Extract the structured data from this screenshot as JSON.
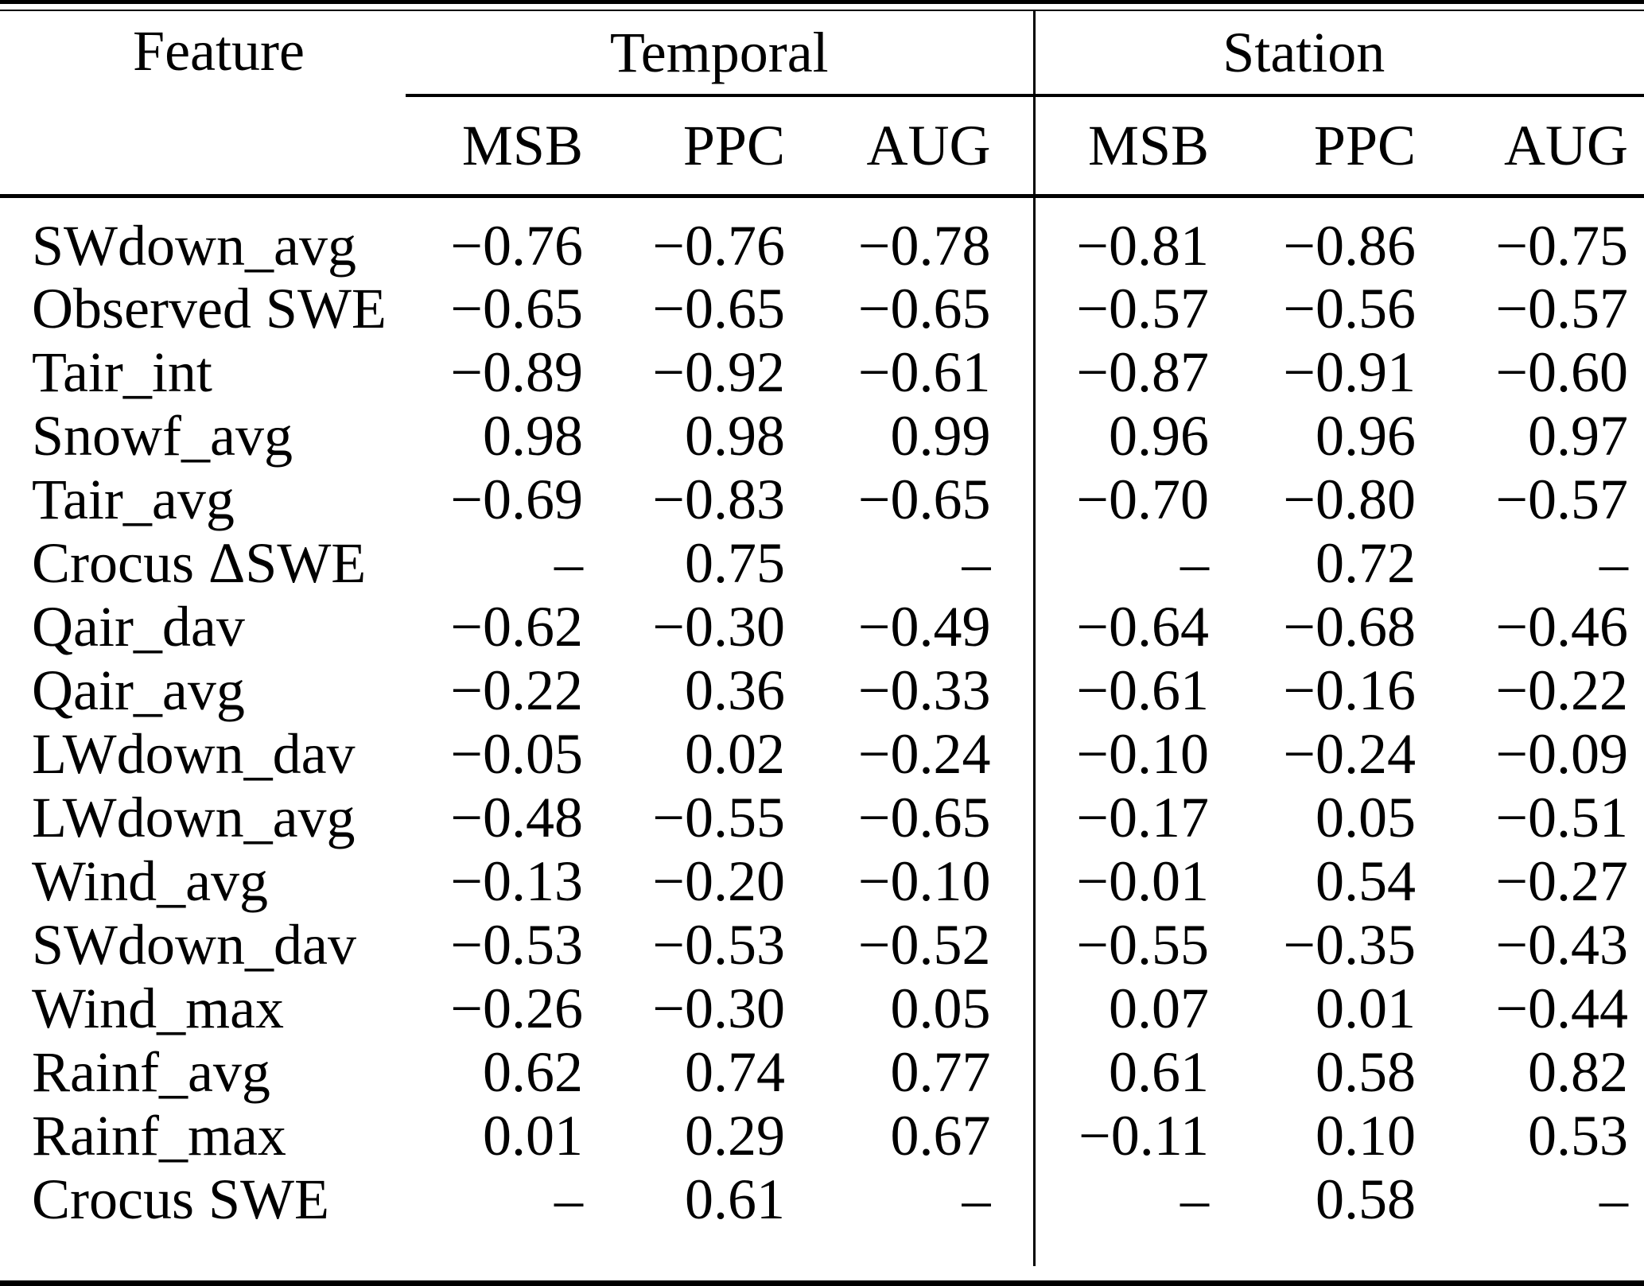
{
  "table": {
    "feature_header": "Feature",
    "groups": [
      {
        "label": "Temporal"
      },
      {
        "label": "Station"
      }
    ],
    "subheaders": [
      "MSB",
      "PPC",
      "AUG",
      "MSB",
      "PPC",
      "AUG"
    ],
    "missing_marker": "–",
    "rows": [
      {
        "feature": "SWdown_avg",
        "values": [
          "−0.76",
          "−0.76",
          "−0.78",
          "−0.81",
          "−0.86",
          "−0.75"
        ]
      },
      {
        "feature": "Observed SWE",
        "values": [
          "−0.65",
          "−0.65",
          "−0.65",
          "−0.57",
          "−0.56",
          "−0.57"
        ]
      },
      {
        "feature": "Tair_int",
        "values": [
          "−0.89",
          "−0.92",
          "−0.61",
          "−0.87",
          "−0.91",
          "−0.60"
        ]
      },
      {
        "feature": "Snowf_avg",
        "values": [
          "0.98",
          "0.98",
          "0.99",
          "0.96",
          "0.96",
          "0.97"
        ]
      },
      {
        "feature": "Tair_avg",
        "values": [
          "−0.69",
          "−0.83",
          "−0.65",
          "−0.70",
          "−0.80",
          "−0.57"
        ]
      },
      {
        "feature": "Crocus ΔSWE",
        "values": [
          "–",
          "0.75",
          "–",
          "–",
          "0.72",
          "–"
        ]
      },
      {
        "feature": "Qair_dav",
        "values": [
          "−0.62",
          "−0.30",
          "−0.49",
          "−0.64",
          "−0.68",
          "−0.46"
        ]
      },
      {
        "feature": "Qair_avg",
        "values": [
          "−0.22",
          "0.36",
          "−0.33",
          "−0.61",
          "−0.16",
          "−0.22"
        ]
      },
      {
        "feature": "LWdown_dav",
        "values": [
          "−0.05",
          "0.02",
          "−0.24",
          "−0.10",
          "−0.24",
          "−0.09"
        ]
      },
      {
        "feature": "LWdown_avg",
        "values": [
          "−0.48",
          "−0.55",
          "−0.65",
          "−0.17",
          "0.05",
          "−0.51"
        ]
      },
      {
        "feature": "Wind_avg",
        "values": [
          "−0.13",
          "−0.20",
          "−0.10",
          "−0.01",
          "0.54",
          "−0.27"
        ]
      },
      {
        "feature": "SWdown_dav",
        "values": [
          "−0.53",
          "−0.53",
          "−0.52",
          "−0.55",
          "−0.35",
          "−0.43"
        ]
      },
      {
        "feature": "Wind_max",
        "values": [
          "−0.26",
          "−0.30",
          "0.05",
          "0.07",
          "0.01",
          "−0.44"
        ]
      },
      {
        "feature": "Rainf_avg",
        "values": [
          "0.62",
          "0.74",
          "0.77",
          "0.61",
          "0.58",
          "0.82"
        ]
      },
      {
        "feature": "Rainf_max",
        "values": [
          "0.01",
          "0.29",
          "0.67",
          "−0.11",
          "0.10",
          "0.53"
        ]
      },
      {
        "feature": "Crocus SWE",
        "values": [
          "–",
          "0.61",
          "–",
          "–",
          "0.58",
          "–"
        ]
      }
    ],
    "colors": {
      "text": "#000000",
      "background": "#ffffff",
      "rule": "#000000"
    }
  }
}
